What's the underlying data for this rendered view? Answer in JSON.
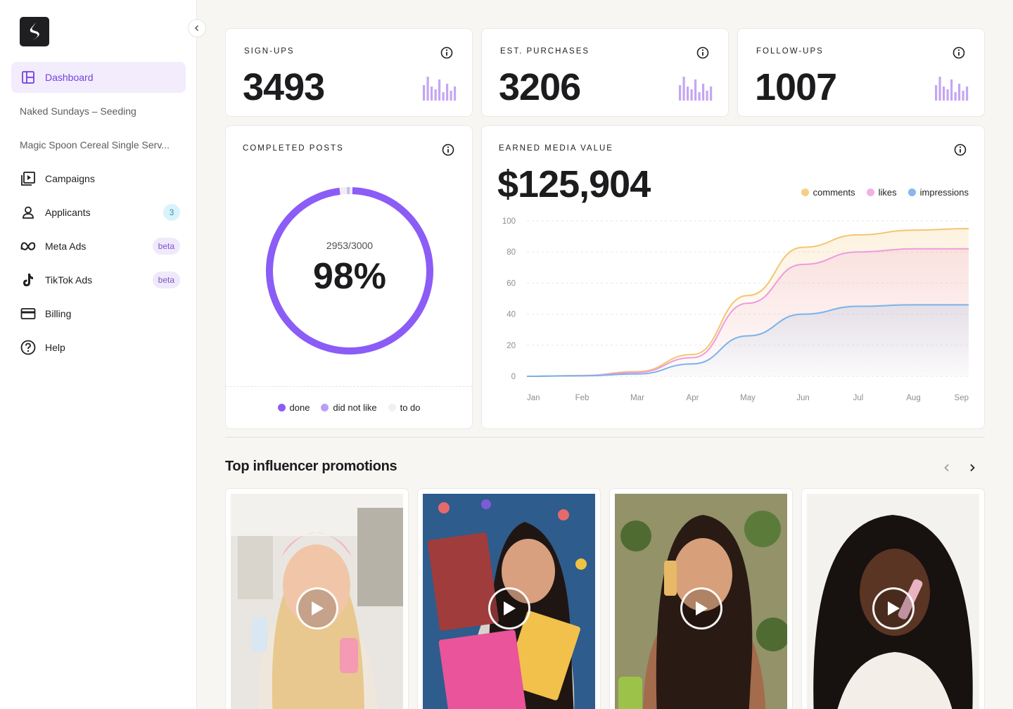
{
  "sidebar": {
    "items": [
      {
        "label": "Dashboard",
        "icon": "dashboard-icon",
        "active": true
      },
      {
        "label": "Naked Sundays – Seeding"
      },
      {
        "label": "Magic Spoon Cereal Single Serv..."
      },
      {
        "label": "Campaigns",
        "icon": "campaigns-icon"
      },
      {
        "label": "Applicants",
        "icon": "user-icon",
        "badge": "3"
      },
      {
        "label": "Meta Ads",
        "icon": "meta-icon",
        "badge": "beta"
      },
      {
        "label": "TikTok Ads",
        "icon": "tiktok-icon",
        "badge": "beta"
      },
      {
        "label": "Billing",
        "icon": "credit-card-icon"
      },
      {
        "label": "Help",
        "icon": "help-circle-icon"
      }
    ]
  },
  "stats": [
    {
      "label": "SIGN-UPS",
      "value": "3493"
    },
    {
      "label": "EST. PURCHASES",
      "value": "3206"
    },
    {
      "label": "FOLLOW-UPS",
      "value": "1007"
    }
  ],
  "completed_posts": {
    "label": "COMPLETED POSTS",
    "ratio": "2953/3000",
    "percent": "98%",
    "done_fraction": 0.98,
    "legend": [
      "done",
      "did not like",
      "to do"
    ]
  },
  "emv": {
    "label": "EARNED MEDIA VALUE",
    "value": "$125,904",
    "legend": [
      "comments",
      "likes",
      "impressions"
    ]
  },
  "chart_data": {
    "type": "area",
    "x": [
      "Jan",
      "Feb",
      "Mar",
      "Apr",
      "May",
      "Jun",
      "Jul",
      "Aug",
      "Sep"
    ],
    "ylim": [
      0,
      100
    ],
    "yticks": [
      0,
      20,
      40,
      60,
      80,
      100
    ],
    "series": [
      {
        "name": "comments",
        "color": "#f4c572",
        "values": [
          0,
          0.5,
          3,
          14,
          52,
          83,
          91,
          94,
          95
        ]
      },
      {
        "name": "likes",
        "color": "#ee9bdf",
        "values": [
          0,
          0.4,
          2.5,
          12,
          47,
          72,
          80,
          82,
          82
        ]
      },
      {
        "name": "impressions",
        "color": "#7ab3ea",
        "values": [
          0,
          0.3,
          1.5,
          8,
          26,
          40,
          45,
          46,
          46
        ]
      }
    ]
  },
  "promotions": {
    "title": "Top influencer promotions",
    "items": [
      {
        "name": "promo-1"
      },
      {
        "name": "promo-2"
      },
      {
        "name": "promo-3"
      },
      {
        "name": "promo-4"
      }
    ]
  },
  "colors": {
    "accent": "#7340e0",
    "done": "#8b5cf6",
    "did_not_like": "#b9a0f5",
    "to_do": "#f0eff2"
  }
}
